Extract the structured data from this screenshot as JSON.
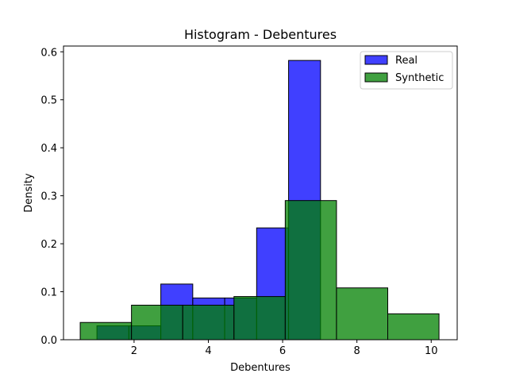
{
  "chart_data": {
    "type": "bar",
    "title": "Histogram - Debentures",
    "xlabel": "Debentures",
    "ylabel": "Density",
    "xlim": [
      0.1,
      10.7
    ],
    "ylim": [
      0,
      0.612
    ],
    "xticks": [
      2,
      4,
      6,
      8,
      10
    ],
    "yticks": [
      0.0,
      0.1,
      0.2,
      0.3,
      0.4,
      0.5,
      0.6
    ],
    "ytick_labels": [
      "0.0",
      "0.1",
      "0.2",
      "0.3",
      "0.4",
      "0.5",
      "0.6"
    ],
    "grid": false,
    "legend_position": "top-right",
    "series": [
      {
        "name": "Real",
        "color": "#0000ff",
        "opacity": 0.75,
        "bins": [
          {
            "x0": 1.0,
            "x1": 1.86,
            "density": 0.029
          },
          {
            "x0": 1.86,
            "x1": 2.72,
            "density": 0.029
          },
          {
            "x0": 2.72,
            "x1": 3.58,
            "density": 0.116
          },
          {
            "x0": 3.58,
            "x1": 4.44,
            "density": 0.087
          },
          {
            "x0": 4.44,
            "x1": 5.3,
            "density": 0.087
          },
          {
            "x0": 5.3,
            "x1": 6.16,
            "density": 0.233
          },
          {
            "x0": 6.16,
            "x1": 7.02,
            "density": 0.582
          }
        ]
      },
      {
        "name": "Synthetic",
        "color": "#008000",
        "opacity": 0.75,
        "bins": [
          {
            "x0": 0.55,
            "x1": 1.93,
            "density": 0.036
          },
          {
            "x0": 1.93,
            "x1": 3.31,
            "density": 0.072
          },
          {
            "x0": 3.31,
            "x1": 4.69,
            "density": 0.072
          },
          {
            "x0": 4.69,
            "x1": 6.07,
            "density": 0.09
          },
          {
            "x0": 6.07,
            "x1": 7.45,
            "density": 0.29
          },
          {
            "x0": 7.45,
            "x1": 8.83,
            "density": 0.108
          },
          {
            "x0": 8.83,
            "x1": 10.21,
            "density": 0.054
          }
        ]
      }
    ]
  }
}
